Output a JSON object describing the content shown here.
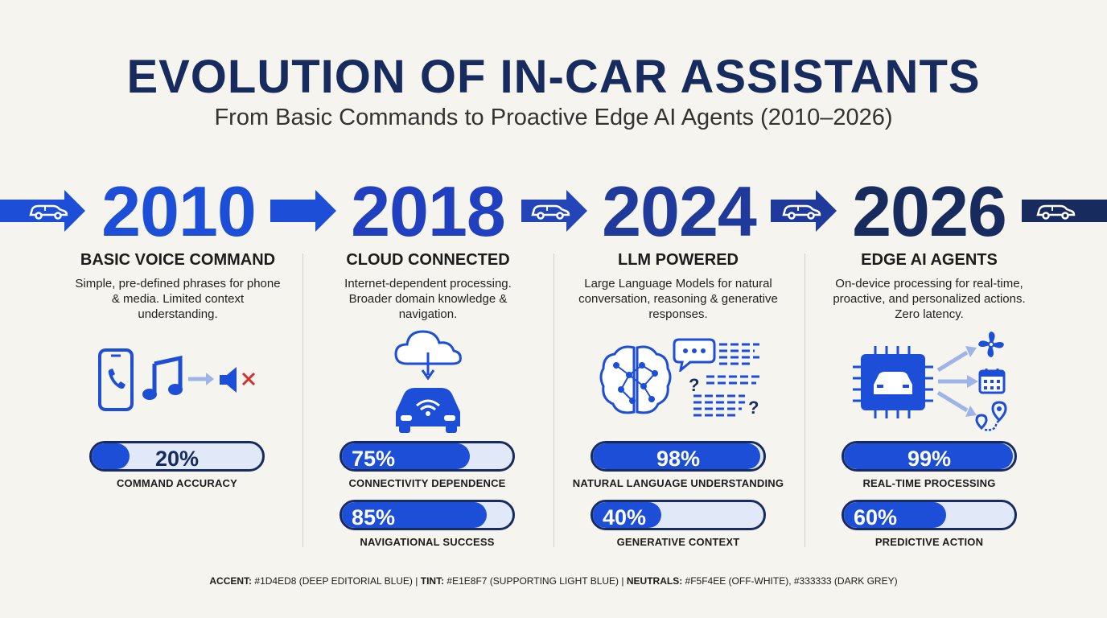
{
  "header": {
    "title": "EVOLUTION OF IN-CAR ASSISTANTS",
    "subtitle": "From Basic Commands to Proactive Edge AI Agents (2010–2026)"
  },
  "colors": {
    "accent": "#1D4ED8",
    "tint": "#E1E8F7",
    "off_white": "#F5F4EE",
    "dark_grey": "#333333",
    "navy": "#172B5E"
  },
  "eras": [
    {
      "year": "2010",
      "title": "BASIC VOICE COMMAND",
      "description": "Simple, pre-defined phrases for phone & media. Limited context understanding.",
      "icons": [
        "smartphone-icon",
        "music-note-icon",
        "arrow-icon",
        "speaker-muted-icon"
      ],
      "metrics": [
        {
          "value": 20,
          "text": "20%",
          "label": "COMMAND ACCURACY"
        }
      ]
    },
    {
      "year": "2018",
      "title": "CLOUD CONNECTED",
      "description": "Internet-dependent processing. Broader domain knowledge & navigation.",
      "icons": [
        "cloud-icon",
        "connected-car-icon"
      ],
      "metrics": [
        {
          "value": 75,
          "text": "75%",
          "label": "CONNECTIVITY DEPENDENCE"
        },
        {
          "value": 85,
          "text": "85%",
          "label": "NAVIGATIONAL SUCCESS"
        }
      ]
    },
    {
      "year": "2024",
      "title": "LLM POWERED",
      "description": "Large Language Models for natural conversation, reasoning & generative responses.",
      "icons": [
        "neural-brain-icon",
        "chat-bubble-icon",
        "text-lines-icon"
      ],
      "metrics": [
        {
          "value": 98,
          "text": "98%",
          "label": "NATURAL LANGUAGE UNDERSTANDING"
        },
        {
          "value": 40,
          "text": "40%",
          "label": "GENERATIVE CONTEXT"
        }
      ]
    },
    {
      "year": "2026",
      "title": "EDGE AI AGENTS",
      "description": "On-device processing for real-time, proactive, and personalized actions. Zero latency.",
      "icons": [
        "chip-car-icon",
        "fan-icon",
        "calendar-icon",
        "map-route-icon"
      ],
      "metrics": [
        {
          "value": 99,
          "text": "99%",
          "label": "REAL-TIME PROCESSING"
        },
        {
          "value": 60,
          "text": "60%",
          "label": "PREDICTIVE ACTION"
        }
      ]
    }
  ],
  "footer": {
    "accent_label": "ACCENT:",
    "accent_value": "#1D4ED8 (DEEP EDITORIAL BLUE)",
    "tint_label": "TINT:",
    "tint_value": "#E1E8F7 (SUPPORTING LIGHT BLUE)",
    "neutrals_label": "NEUTRALS:",
    "neutrals_value": "#F5F4EE (OFF-WHITE), #333333 (DARK GREY)",
    "separator": "|"
  }
}
